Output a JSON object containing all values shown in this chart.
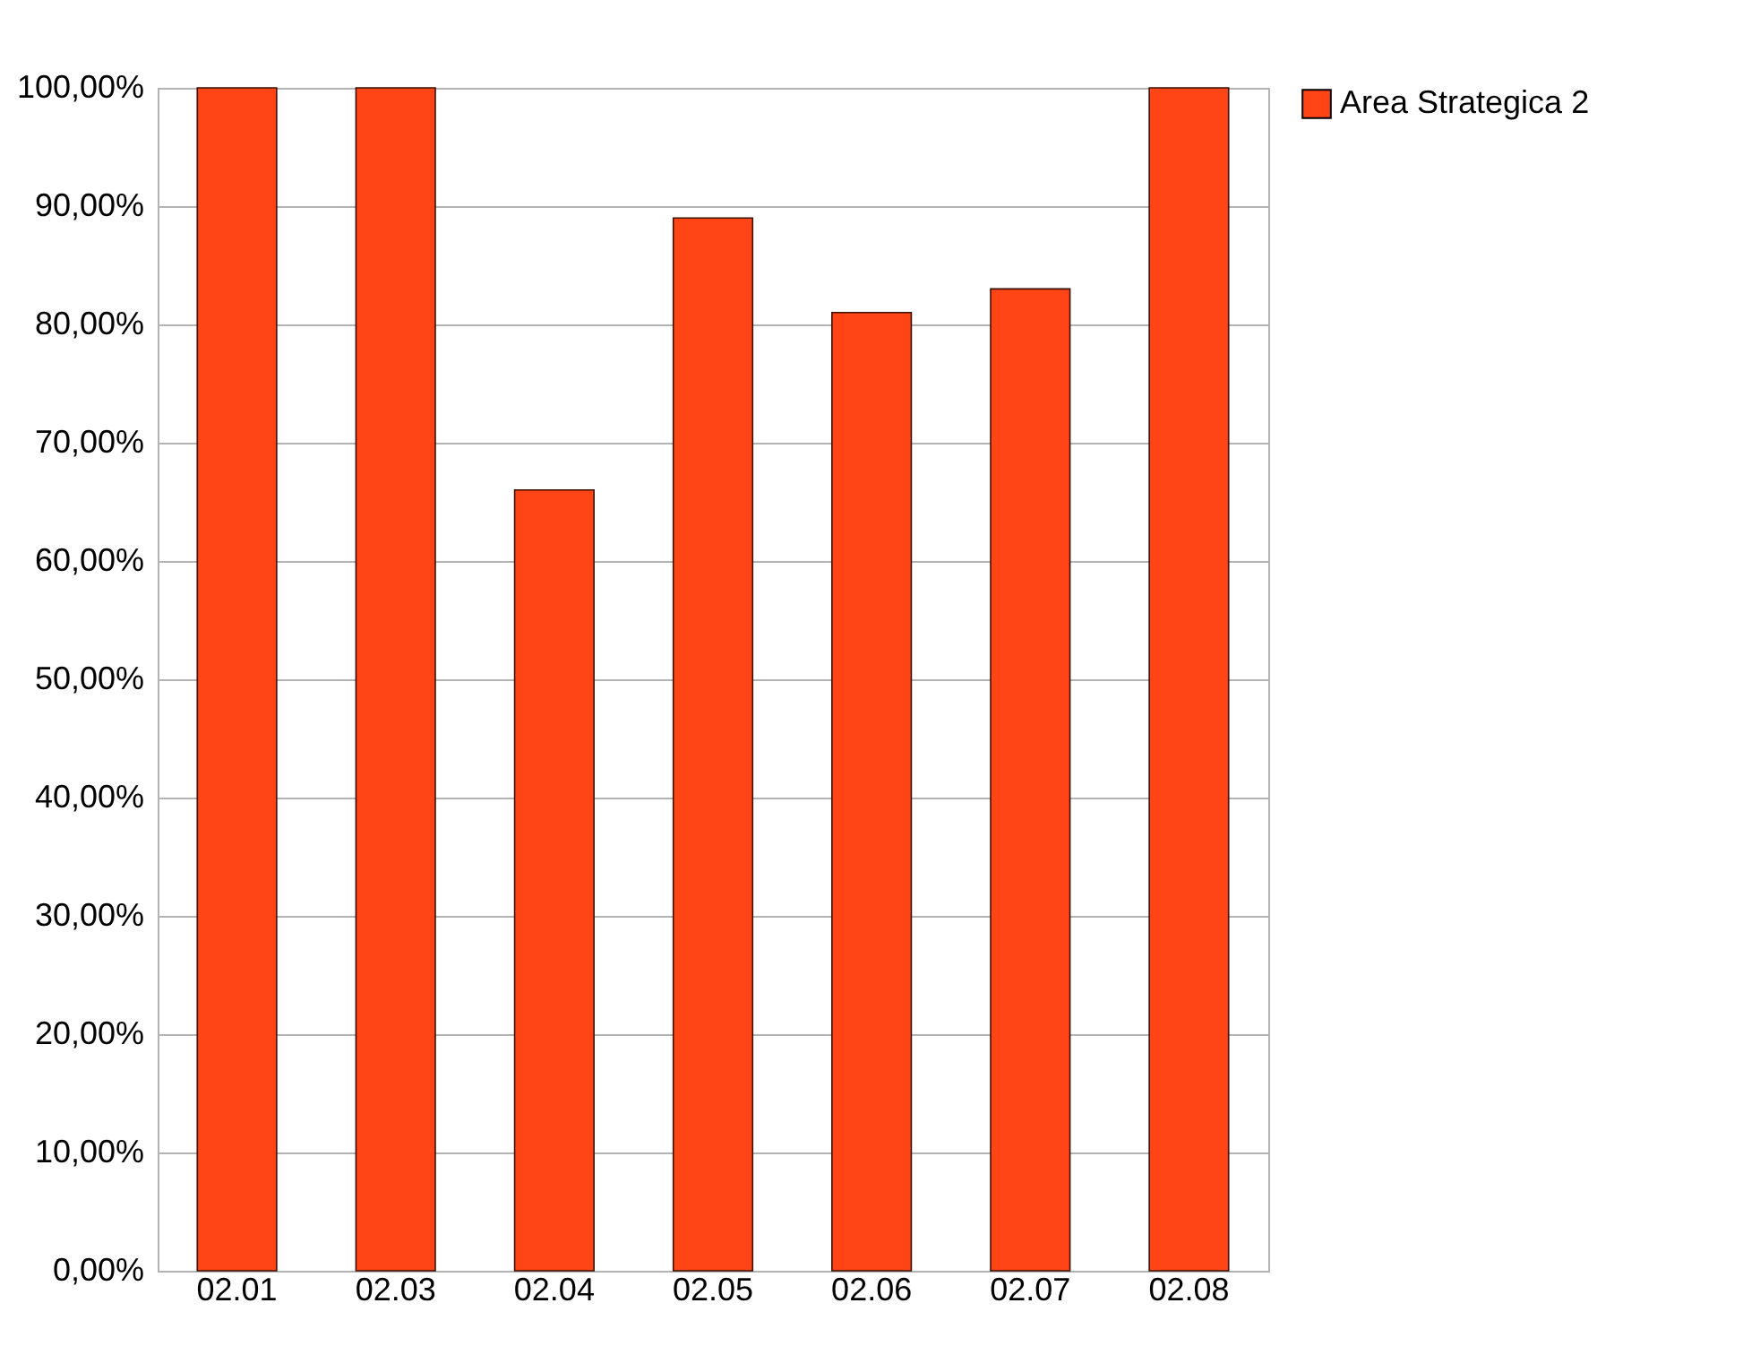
{
  "chart_data": {
    "type": "bar",
    "categories": [
      "02.01",
      "02.03",
      "02.04",
      "02.05",
      "02.06",
      "02.07",
      "02.08"
    ],
    "series": [
      {
        "name": "Area Strategica 2",
        "color": "#ff4515",
        "values": [
          100,
          100,
          66,
          89,
          81,
          83,
          100
        ]
      }
    ],
    "ylim": [
      0,
      100
    ],
    "yticks": [
      {
        "value": 0,
        "label": "0,00%"
      },
      {
        "value": 10,
        "label": "10,00%"
      },
      {
        "value": 20,
        "label": "20,00%"
      },
      {
        "value": 30,
        "label": "30,00%"
      },
      {
        "value": 40,
        "label": "40,00%"
      },
      {
        "value": 50,
        "label": "50,00%"
      },
      {
        "value": 60,
        "label": "60,00%"
      },
      {
        "value": 70,
        "label": "70,00%"
      },
      {
        "value": 80,
        "label": "80,00%"
      },
      {
        "value": 90,
        "label": "90,00%"
      },
      {
        "value": 100,
        "label": "100,00%"
      }
    ],
    "grid": true,
    "legend": "right"
  }
}
